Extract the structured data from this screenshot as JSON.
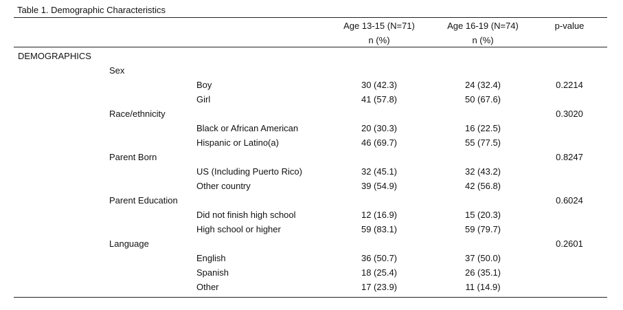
{
  "title": "Table 1. Demographic Characteristics",
  "headers": {
    "col1_line1": "Age 13-15 (N=71)",
    "col1_line2": "n (%)",
    "col2_line1": "Age 16-19 (N=74)",
    "col2_line2": "n (%)",
    "col3_line1": "p-value"
  },
  "rows": [
    {
      "section": "DEMOGRAPHICS",
      "variable": "",
      "category": "",
      "v1": "",
      "v2": "",
      "p": ""
    },
    {
      "section": "",
      "variable": "Sex",
      "category": "",
      "v1": "",
      "v2": "",
      "p": ""
    },
    {
      "section": "",
      "variable": "",
      "category": "Boy",
      "v1": "30 (42.3)",
      "v2": "24 (32.4)",
      "p": "0.2214"
    },
    {
      "section": "",
      "variable": "",
      "category": "Girl",
      "v1": "41 (57.8)",
      "v2": "50 (67.6)",
      "p": ""
    },
    {
      "section": "",
      "variable": "Race/ethnicity",
      "category": "",
      "v1": "",
      "v2": "",
      "p": "0.3020"
    },
    {
      "section": "",
      "variable": "",
      "category": "Black or African American",
      "v1": "20 (30.3)",
      "v2": "16 (22.5)",
      "p": ""
    },
    {
      "section": "",
      "variable": "",
      "category": "Hispanic or Latino(a)",
      "v1": "46 (69.7)",
      "v2": "55 (77.5)",
      "p": ""
    },
    {
      "section": "",
      "variable": "Parent Born",
      "category": "",
      "v1": "",
      "v2": "",
      "p": "0.8247"
    },
    {
      "section": "",
      "variable": "",
      "category": "US (Including Puerto Rico)",
      "v1": "32 (45.1)",
      "v2": "32 (43.2)",
      "p": ""
    },
    {
      "section": "",
      "variable": "",
      "category": "Other country",
      "v1": "39 (54.9)",
      "v2": "42 (56.8)",
      "p": ""
    },
    {
      "section": "",
      "variable": "Parent Education",
      "category": "",
      "v1": "",
      "v2": "",
      "p": "0.6024"
    },
    {
      "section": "",
      "variable": "",
      "category": "Did not finish high school",
      "v1": "12 (16.9)",
      "v2": "15 (20.3)",
      "p": ""
    },
    {
      "section": "",
      "variable": "",
      "category": "High school or higher",
      "v1": "59 (83.1)",
      "v2": "59 (79.7)",
      "p": ""
    },
    {
      "section": "",
      "variable": "Language",
      "category": "",
      "v1": "",
      "v2": "",
      "p": "0.2601"
    },
    {
      "section": "",
      "variable": "",
      "category": "English",
      "v1": "36 (50.7)",
      "v2": "37 (50.0)",
      "p": ""
    },
    {
      "section": "",
      "variable": "",
      "category": "Spanish",
      "v1": "18 (25.4)",
      "v2": "26 (35.1)",
      "p": ""
    },
    {
      "section": "",
      "variable": "",
      "category": "Other",
      "v1": "17 (23.9)",
      "v2": "11 (14.9)",
      "p": ""
    }
  ]
}
